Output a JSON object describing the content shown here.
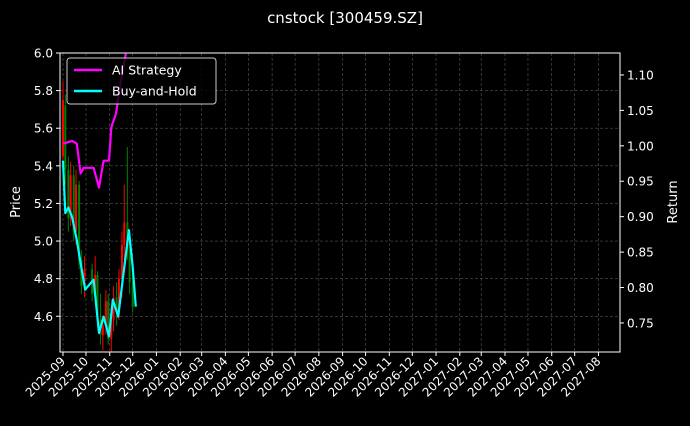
{
  "chart_data": {
    "type": "line",
    "title": "cnstock [300459.SZ]",
    "ylabel_left": "Price",
    "ylabel_right": "Return",
    "xlabel": "",
    "grid": true,
    "legend_placement": "top-left",
    "ylim_left": [
      4.41,
      6.0
    ],
    "ylim_right": [
      0.709,
      1.131
    ],
    "yticks_left": [
      "4.6",
      "4.8",
      "5.0",
      "5.2",
      "5.4",
      "5.6",
      "5.8",
      "6.0"
    ],
    "yticks_right": [
      "0.75",
      "0.80",
      "0.85",
      "0.90",
      "0.95",
      "1.00",
      "1.05",
      "1.10"
    ],
    "xticks": [
      "2025-09",
      "2025-10",
      "2025-11",
      "2025-12",
      "2026-01",
      "2026-02",
      "2026-03",
      "2026-04",
      "2026-05",
      "2026-06",
      "2026-07",
      "2026-08",
      "2026-09",
      "2026-10",
      "2026-11",
      "2026-12",
      "2027-01",
      "2027-02",
      "2027-03",
      "2027-04",
      "2027-05",
      "2027-06",
      "2027-07",
      "2027-08"
    ],
    "colors": {
      "up": "#ff0000",
      "down": "#008000",
      "ai": "#ff00ff",
      "bh": "#00ffff",
      "background": "#000000"
    },
    "candles": [
      [
        "2025-09-01",
        5.45,
        5.85,
        5.35,
        5.75
      ],
      [
        "2025-09-04",
        5.72,
        5.78,
        5.3,
        5.38
      ],
      [
        "2025-09-08",
        5.38,
        5.45,
        5.05,
        5.12
      ],
      [
        "2025-09-11",
        5.12,
        5.42,
        5.08,
        5.35
      ],
      [
        "2025-09-15",
        5.35,
        5.4,
        5.0,
        5.05
      ],
      [
        "2025-09-18",
        5.05,
        5.38,
        4.98,
        5.3
      ],
      [
        "2025-09-22",
        5.3,
        5.32,
        4.85,
        4.9
      ],
      [
        "2025-09-25",
        4.9,
        4.95,
        4.72,
        4.76
      ],
      [
        "2025-09-29",
        4.76,
        4.92,
        4.7,
        4.85
      ],
      [
        "2025-10-09",
        4.85,
        4.88,
        4.68,
        4.72
      ],
      [
        "2025-10-13",
        4.72,
        4.92,
        4.7,
        4.82
      ],
      [
        "2025-10-16",
        4.82,
        4.84,
        4.55,
        4.58
      ],
      [
        "2025-10-20",
        4.58,
        4.72,
        4.45,
        4.5
      ],
      [
        "2025-10-23",
        4.5,
        4.58,
        4.42,
        4.55
      ],
      [
        "2025-10-27",
        4.55,
        4.74,
        4.5,
        4.68
      ],
      [
        "2025-10-30",
        4.68,
        4.72,
        4.45,
        4.48
      ],
      [
        "2025-11-03",
        4.48,
        4.62,
        4.41,
        4.58
      ],
      [
        "2025-11-06",
        4.58,
        4.76,
        4.52,
        4.7
      ],
      [
        "2025-11-10",
        4.7,
        4.78,
        4.55,
        4.62
      ],
      [
        "2025-11-13",
        4.62,
        4.85,
        4.58,
        4.8
      ],
      [
        "2025-11-17",
        4.8,
        5.05,
        4.7,
        4.98
      ],
      [
        "2025-11-20",
        4.98,
        5.3,
        4.9,
        5.1
      ],
      [
        "2025-11-24",
        5.1,
        5.5,
        4.9,
        4.95
      ],
      [
        "2025-11-27",
        4.95,
        5.0,
        4.72,
        4.78
      ],
      [
        "2025-12-01",
        4.78,
        4.85,
        4.62,
        4.65
      ]
    ],
    "series": [
      {
        "name": "AI Strategy",
        "axis": "right",
        "points": [
          [
            "2025-09-01",
            1.003
          ],
          [
            "2025-09-13",
            1.007
          ],
          [
            "2025-09-19",
            1.003
          ],
          [
            "2025-09-24",
            0.961
          ],
          [
            "2025-09-28",
            0.969
          ],
          [
            "2025-10-11",
            0.969
          ],
          [
            "2025-10-18",
            0.941
          ],
          [
            "2025-10-24",
            0.979
          ],
          [
            "2025-10-31",
            0.979
          ],
          [
            "2025-11-03",
            1.026
          ],
          [
            "2025-11-09",
            1.045
          ],
          [
            "2025-11-13",
            1.073
          ],
          [
            "2025-11-18",
            1.106
          ],
          [
            "2025-11-22",
            1.13
          ]
        ]
      },
      {
        "name": "Buy-and-Hold",
        "axis": "right",
        "points": [
          [
            "2025-09-01",
            0.979
          ],
          [
            "2025-09-04",
            0.905
          ],
          [
            "2025-09-08",
            0.913
          ],
          [
            "2025-09-13",
            0.899
          ],
          [
            "2025-09-19",
            0.867
          ],
          [
            "2025-09-26",
            0.821
          ],
          [
            "2025-09-30",
            0.797
          ],
          [
            "2025-10-11",
            0.811
          ],
          [
            "2025-10-18",
            0.736
          ],
          [
            "2025-10-24",
            0.759
          ],
          [
            "2025-10-31",
            0.731
          ],
          [
            "2025-11-05",
            0.783
          ],
          [
            "2025-11-12",
            0.759
          ],
          [
            "2025-11-18",
            0.811
          ],
          [
            "2025-11-26",
            0.881
          ],
          [
            "2025-12-01",
            0.829
          ],
          [
            "2025-12-05",
            0.773
          ]
        ]
      }
    ]
  }
}
